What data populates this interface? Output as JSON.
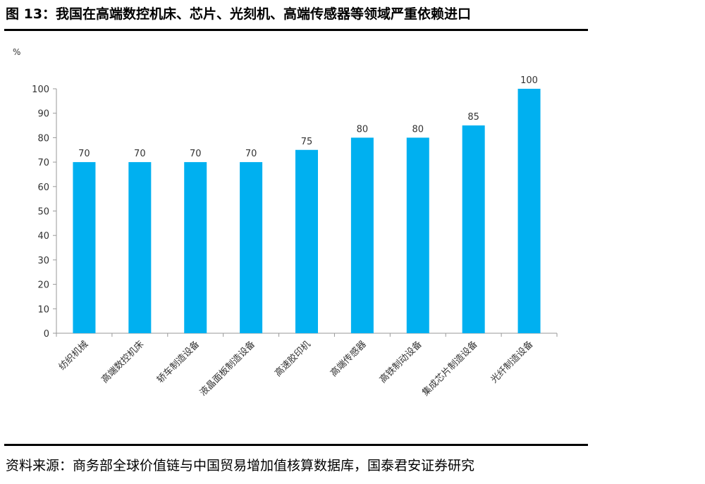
{
  "figure": {
    "title": "图 13：我国在高端数控机床、芯片、光刻机、高端传感器等领域严重依赖进口",
    "source": "资料来源：商务部全球价值链与中国贸易增加值核算数据库，国泰君安证券研究"
  },
  "chart_data": {
    "type": "bar",
    "unit_label": "%",
    "categories": [
      "纺织机械",
      "高端数控机床",
      "轿车制造设备",
      "液晶面板制造设备",
      "高速胶印机",
      "高端传感器",
      "高铁制动设备",
      "集成芯片制造设备",
      "光纤制造设备"
    ],
    "values": [
      70,
      70,
      70,
      70,
      75,
      80,
      80,
      85,
      100
    ],
    "data_labels": [
      "70",
      "70",
      "70",
      "70",
      "75",
      "80",
      "80",
      "85",
      "100"
    ],
    "ylim": [
      0,
      100
    ],
    "yticks": [
      0,
      10,
      20,
      30,
      40,
      50,
      60,
      70,
      80,
      90,
      100
    ],
    "bar_color": "#00B0F0",
    "grid": false,
    "legend": "none"
  }
}
